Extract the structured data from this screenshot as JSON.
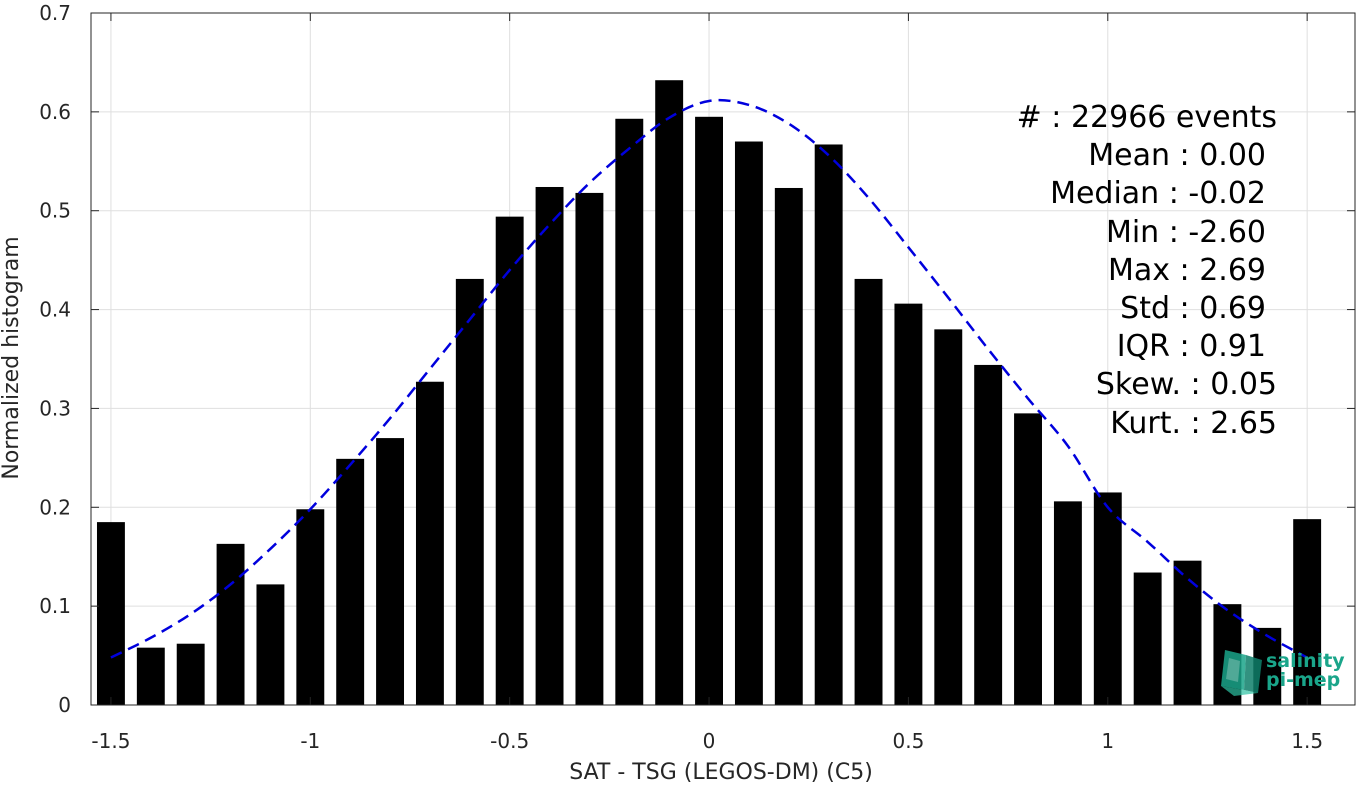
{
  "chart_data": {
    "type": "bar",
    "title": "",
    "xlabel": "SAT - TSG (LEGOS-DM) (C5)",
    "ylabel": "Normalized histogram",
    "xlim": [
      -1.55,
      1.62
    ],
    "ylim": [
      0,
      0.7
    ],
    "grid": true,
    "bar_width": 0.07,
    "x_ticks": [
      -1.5,
      -1,
      -0.5,
      0,
      0.5,
      1,
      1.5
    ],
    "x_tick_labels": [
      "-1.5",
      "-1",
      "-0.5",
      "0",
      "0.5",
      "1",
      "1.5"
    ],
    "y_ticks": [
      0,
      0.1,
      0.2,
      0.3,
      0.4,
      0.5,
      0.6,
      0.7
    ],
    "y_tick_labels": [
      "0",
      "0.1",
      "0.2",
      "0.3",
      "0.4",
      "0.5",
      "0.6",
      "0.7"
    ],
    "x": [
      -1.5,
      -1.4,
      -1.3,
      -1.2,
      -1.1,
      -1.0,
      -0.9,
      -0.8,
      -0.7,
      -0.6,
      -0.5,
      -0.4,
      -0.3,
      -0.2,
      -0.1,
      0.0,
      0.1,
      0.2,
      0.3,
      0.4,
      0.5,
      0.6,
      0.7,
      0.8,
      0.9,
      1.0,
      1.1,
      1.2,
      1.3,
      1.4,
      1.5
    ],
    "values": [
      0.185,
      0.058,
      0.062,
      0.163,
      0.122,
      0.198,
      0.249,
      0.27,
      0.327,
      0.431,
      0.494,
      0.524,
      0.518,
      0.593,
      0.632,
      0.595,
      0.57,
      0.523,
      0.567,
      0.431,
      0.406,
      0.38,
      0.344,
      0.295,
      0.206,
      0.215,
      0.134,
      0.146,
      0.102,
      0.078,
      0.188
    ],
    "bar_color": "#000000",
    "fit_curve": {
      "style": "dashed",
      "color": "#0000dd",
      "x": [
        -1.5,
        -1.4,
        -1.3,
        -1.2,
        -1.1,
        -1.0,
        -0.9,
        -0.8,
        -0.7,
        -0.6,
        -0.5,
        -0.4,
        -0.3,
        -0.2,
        -0.1,
        0.0,
        0.1,
        0.2,
        0.3,
        0.4,
        0.5,
        0.6,
        0.7,
        0.8,
        0.9,
        1.0,
        1.1,
        1.2,
        1.3,
        1.4,
        1.5
      ],
      "y": [
        0.048,
        0.068,
        0.092,
        0.122,
        0.158,
        0.198,
        0.243,
        0.29,
        0.34,
        0.39,
        0.44,
        0.486,
        0.528,
        0.563,
        0.594,
        0.611,
        0.607,
        0.588,
        0.556,
        0.513,
        0.463,
        0.412,
        0.36,
        0.31,
        0.262,
        0.2,
        0.165,
        0.128,
        0.096,
        0.07,
        0.048
      ]
    }
  },
  "stats": [
    {
      "label": "#  : 22966 events"
    },
    {
      "label": "Mean : 0.00"
    },
    {
      "label": "Median : -0.02"
    },
    {
      "label": "Min : -2.60"
    },
    {
      "label": "Max : 2.69"
    },
    {
      "label": "Std : 0.69"
    },
    {
      "label": "IQR : 0.91"
    },
    {
      "label": "Skew. : 0.05"
    },
    {
      "label": "Kurt. : 2.65"
    }
  ],
  "logo": {
    "line1": "salinity",
    "line2": "pi-mep",
    "icon": "cube-logo-icon",
    "color": "#1aa58a"
  }
}
